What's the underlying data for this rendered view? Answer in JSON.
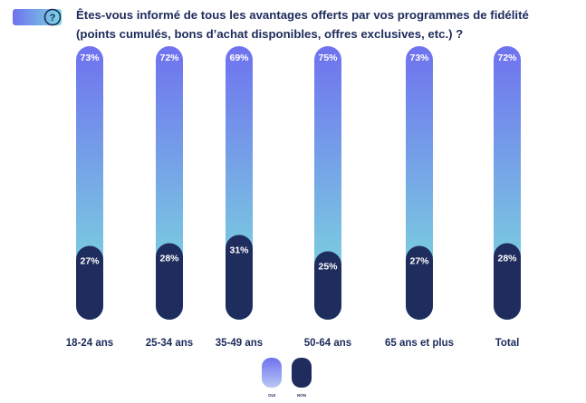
{
  "header": {
    "icon": "question-mark-icon",
    "title_line1": "Êtes-vous informé de tous les avantages offerts par vos programmes de fidélité",
    "title_line2": "(points cumulés, bons d’achat disponibles, offres exclusives, etc.) ?"
  },
  "colors": {
    "oui_top": "#6f72ef",
    "oui_bottom": "#7de3dc",
    "non": "#1f2d5e",
    "text": "#1d2b5c"
  },
  "chart_data": {
    "type": "bar",
    "title": "Êtes-vous informé de tous les avantages offerts par vos programmes de fidélité (points cumulés, bons d’achat disponibles, offres exclusives, etc.) ?",
    "categories": [
      "18-24 ans",
      "25-34 ans",
      "35-49 ans",
      "50-64 ans",
      "65 ans et plus",
      "Total"
    ],
    "series": [
      {
        "name": "OUI",
        "values": [
          73,
          72,
          69,
          75,
          73,
          72
        ],
        "labels": [
          "73%",
          "72%",
          "69%",
          "75%",
          "73%",
          "72%"
        ]
      },
      {
        "name": "NON",
        "values": [
          27,
          28,
          31,
          25,
          27,
          28
        ],
        "labels": [
          "27%",
          "28%",
          "31%",
          "25%",
          "27%",
          "28%"
        ]
      }
    ],
    "ylim": [
      0,
      100
    ],
    "grid": false,
    "legend": "bottom-center",
    "xlabel": "",
    "ylabel": ""
  }
}
